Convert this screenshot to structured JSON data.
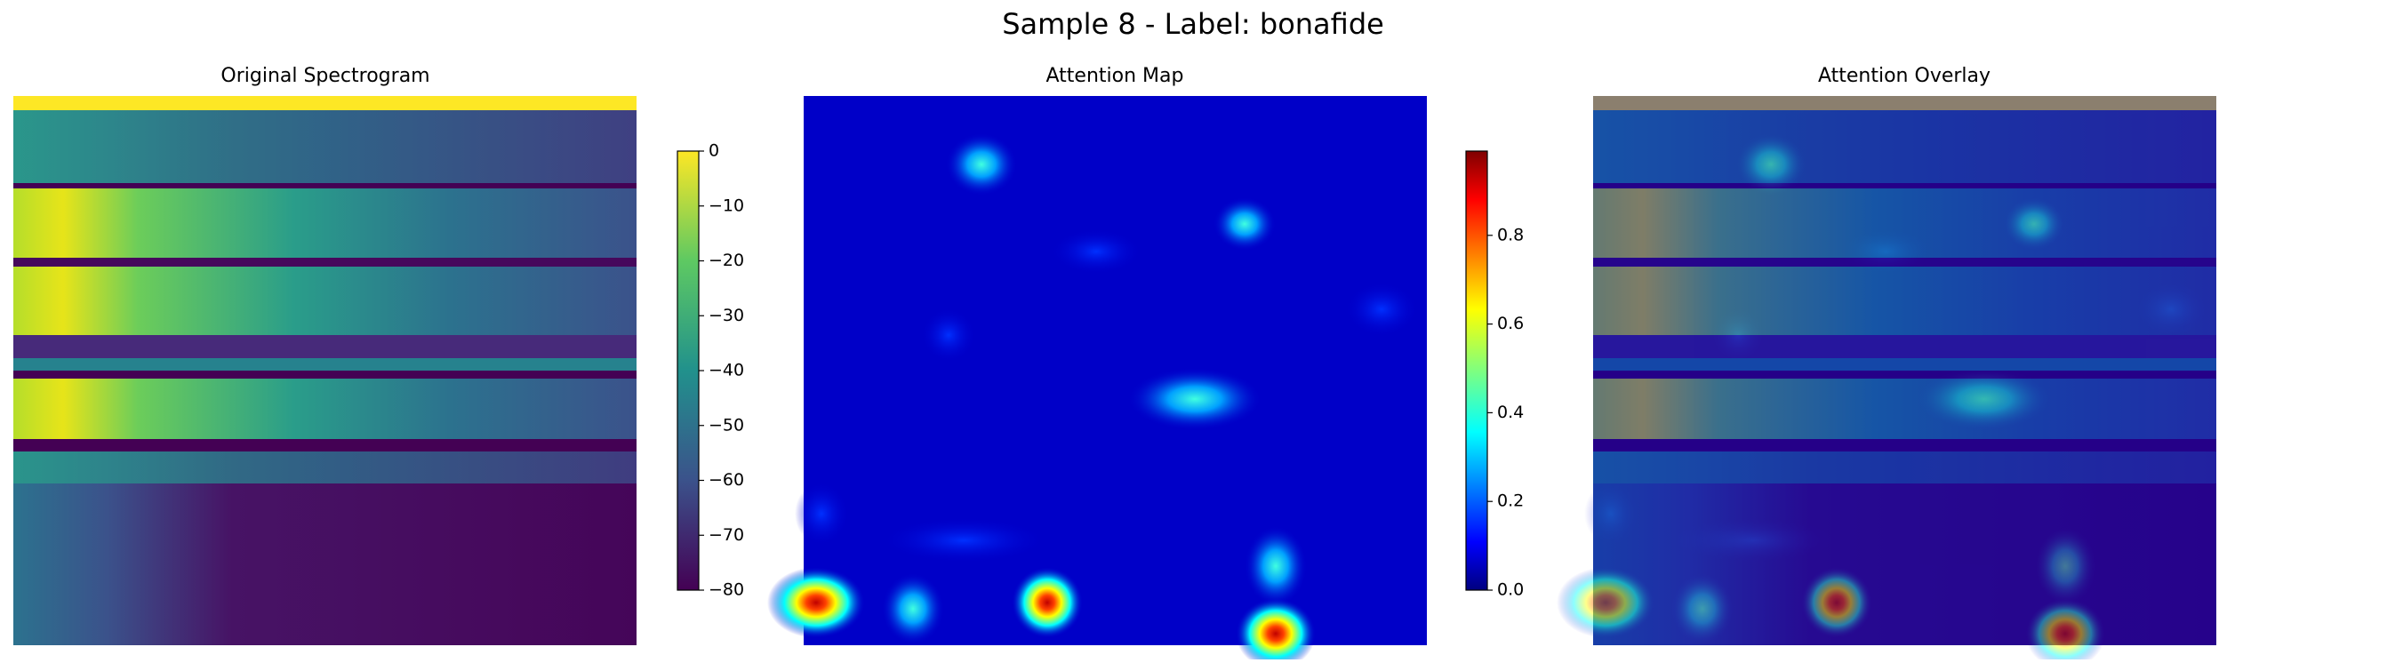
{
  "title": "Sample 8 - Label: bonafide",
  "chart_data": [
    {
      "type": "heatmap",
      "title": "Original Spectrogram",
      "colorbar": {
        "colormap": "viridis",
        "ylim": [
          -80,
          0
        ],
        "yticks": [
          0,
          {
            "value": -10,
            "label": "−10"
          },
          {
            "value": -20,
            "label": "−20"
          },
          {
            "value": -30,
            "label": "−30"
          },
          {
            "value": -40,
            "label": "−40"
          },
          {
            "value": -50,
            "label": "−50"
          },
          {
            "value": -60,
            "label": "−60"
          },
          {
            "value": -70,
            "label": "−70"
          },
          {
            "value": -80,
            "label": "−80"
          }
        ]
      }
    },
    {
      "type": "heatmap",
      "title": "Attention Map",
      "colorbar": {
        "colormap": "jet",
        "ylim": [
          0,
          0.99
        ],
        "yticks": [
          {
            "value": 0,
            "label": "0.0"
          },
          0.2,
          0.4,
          0.6,
          0.8
        ]
      }
    },
    {
      "type": "heatmap",
      "title": "Attention Overlay"
    }
  ]
}
